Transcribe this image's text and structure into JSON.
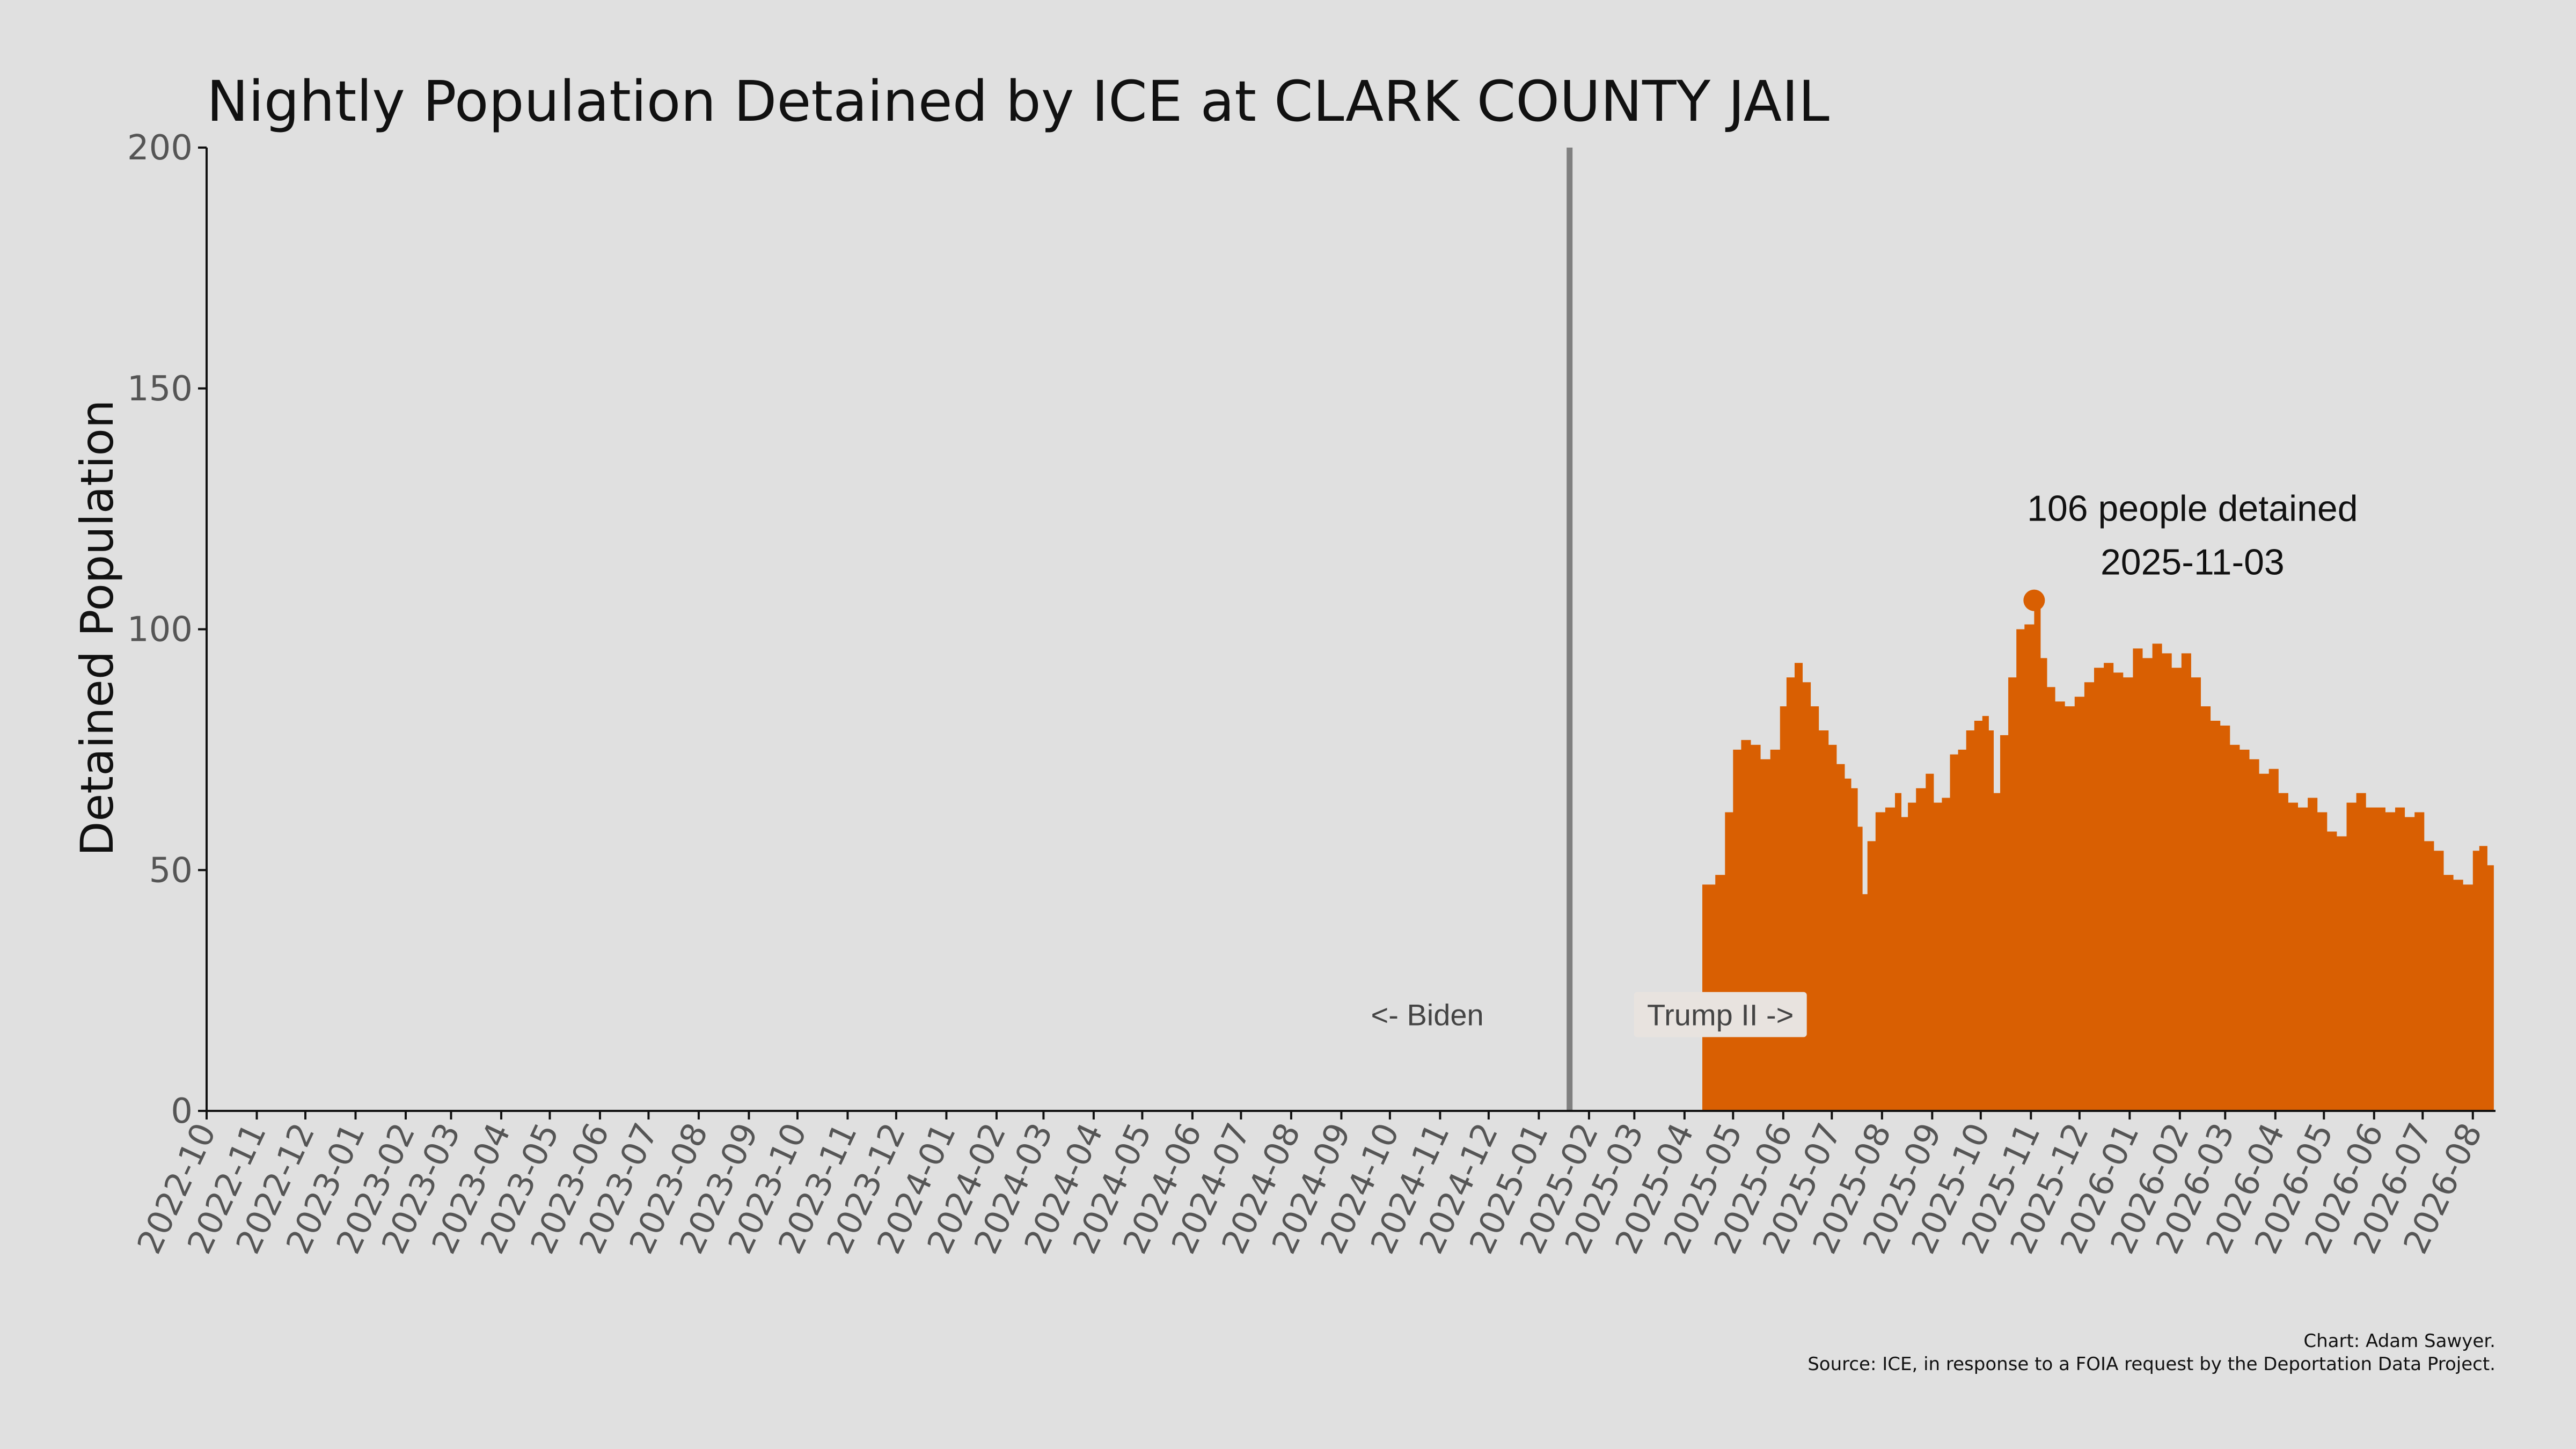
{
  "chart_data": {
    "type": "area",
    "title": "Nightly Population Detained by ICE at CLARK COUNTY JAIL",
    "xlabel": "",
    "ylabel": "Detained Population",
    "ylim": [
      0,
      200
    ],
    "yticks": [
      "0",
      "50",
      "100",
      "150",
      "200"
    ],
    "xlim": [
      "2022-10-01",
      "2026-08-15"
    ],
    "xticks": [
      "2022-10",
      "2022-11",
      "2022-12",
      "2023-01",
      "2023-02",
      "2023-03",
      "2023-04",
      "2023-05",
      "2023-06",
      "2023-07",
      "2023-08",
      "2023-09",
      "2023-10",
      "2023-11",
      "2023-12",
      "2024-01",
      "2024-02",
      "2024-03",
      "2024-04",
      "2024-05",
      "2024-06",
      "2024-07",
      "2024-08",
      "2024-09",
      "2024-10",
      "2024-11",
      "2024-12",
      "2025-01",
      "2025-02",
      "2025-03",
      "2025-04",
      "2025-05",
      "2025-06",
      "2025-07",
      "2025-08",
      "2025-09",
      "2025-10",
      "2025-11",
      "2025-12",
      "2026-01",
      "2026-02",
      "2026-03",
      "2026-04",
      "2026-05",
      "2026-06",
      "2026-07",
      "2026-08"
    ],
    "grid": false,
    "legend": "none",
    "fill_color": "#d95f02",
    "divider_date": "2025-01-20",
    "divider_color": "#808080",
    "era_left_label": "<- Biden",
    "era_right_label": "Trump II ->",
    "peak": {
      "date": "2025-11-03",
      "value": 106,
      "label_line1": "106 people detained",
      "label_line2": "2025-11-03"
    },
    "series": [
      {
        "points": [
          [
            "2025-04-12",
            47
          ],
          [
            "2025-04-20",
            49
          ],
          [
            "2025-04-26",
            62
          ],
          [
            "2025-05-01",
            75
          ],
          [
            "2025-05-06",
            77
          ],
          [
            "2025-05-12",
            76
          ],
          [
            "2025-05-18",
            73
          ],
          [
            "2025-05-24",
            75
          ],
          [
            "2025-05-30",
            84
          ],
          [
            "2025-06-03",
            90
          ],
          [
            "2025-06-08",
            93
          ],
          [
            "2025-06-13",
            89
          ],
          [
            "2025-06-18",
            84
          ],
          [
            "2025-06-23",
            79
          ],
          [
            "2025-06-29",
            76
          ],
          [
            "2025-07-04",
            72
          ],
          [
            "2025-07-09",
            69
          ],
          [
            "2025-07-13",
            67
          ],
          [
            "2025-07-17",
            59
          ],
          [
            "2025-07-20",
            45
          ],
          [
            "2025-07-23",
            56
          ],
          [
            "2025-07-28",
            62
          ],
          [
            "2025-08-03",
            63
          ],
          [
            "2025-08-09",
            66
          ],
          [
            "2025-08-13",
            61
          ],
          [
            "2025-08-17",
            64
          ],
          [
            "2025-08-22",
            67
          ],
          [
            "2025-08-28",
            70
          ],
          [
            "2025-09-02",
            64
          ],
          [
            "2025-09-07",
            65
          ],
          [
            "2025-09-12",
            74
          ],
          [
            "2025-09-17",
            75
          ],
          [
            "2025-09-22",
            79
          ],
          [
            "2025-09-27",
            81
          ],
          [
            "2025-10-02",
            82
          ],
          [
            "2025-10-06",
            79
          ],
          [
            "2025-10-09",
            66
          ],
          [
            "2025-10-13",
            78
          ],
          [
            "2025-10-18",
            90
          ],
          [
            "2025-10-23",
            100
          ],
          [
            "2025-10-28",
            101
          ],
          [
            "2025-11-03",
            106
          ],
          [
            "2025-11-07",
            94
          ],
          [
            "2025-11-11",
            88
          ],
          [
            "2025-11-16",
            85
          ],
          [
            "2025-11-22",
            84
          ],
          [
            "2025-11-28",
            86
          ],
          [
            "2025-12-04",
            89
          ],
          [
            "2025-12-10",
            92
          ],
          [
            "2025-12-16",
            93
          ],
          [
            "2025-12-22",
            91
          ],
          [
            "2025-12-28",
            90
          ],
          [
            "2026-01-03",
            96
          ],
          [
            "2026-01-09",
            94
          ],
          [
            "2026-01-15",
            97
          ],
          [
            "2026-01-21",
            95
          ],
          [
            "2026-01-27",
            92
          ],
          [
            "2026-02-02",
            95
          ],
          [
            "2026-02-08",
            90
          ],
          [
            "2026-02-14",
            84
          ],
          [
            "2026-02-20",
            81
          ],
          [
            "2026-02-26",
            80
          ],
          [
            "2026-03-04",
            76
          ],
          [
            "2026-03-10",
            75
          ],
          [
            "2026-03-16",
            73
          ],
          [
            "2026-03-22",
            70
          ],
          [
            "2026-03-28",
            71
          ],
          [
            "2026-04-03",
            66
          ],
          [
            "2026-04-09",
            64
          ],
          [
            "2026-04-15",
            63
          ],
          [
            "2026-04-21",
            65
          ],
          [
            "2026-04-27",
            62
          ],
          [
            "2026-05-03",
            58
          ],
          [
            "2026-05-09",
            57
          ],
          [
            "2026-05-15",
            64
          ],
          [
            "2026-05-21",
            66
          ],
          [
            "2026-05-27",
            63
          ],
          [
            "2026-06-02",
            63
          ],
          [
            "2026-06-08",
            62
          ],
          [
            "2026-06-14",
            63
          ],
          [
            "2026-06-20",
            61
          ],
          [
            "2026-06-26",
            62
          ],
          [
            "2026-07-02",
            56
          ],
          [
            "2026-07-08",
            54
          ],
          [
            "2026-07-14",
            49
          ],
          [
            "2026-07-20",
            48
          ],
          [
            "2026-07-26",
            47
          ],
          [
            "2026-08-01",
            54
          ],
          [
            "2026-08-05",
            55
          ],
          [
            "2026-08-10",
            51
          ]
        ]
      }
    ]
  },
  "caption": {
    "line1": "Chart: Adam Sawyer.",
    "line2": "Source: ICE, in response to a FOIA request by the Deportation Data Project."
  }
}
